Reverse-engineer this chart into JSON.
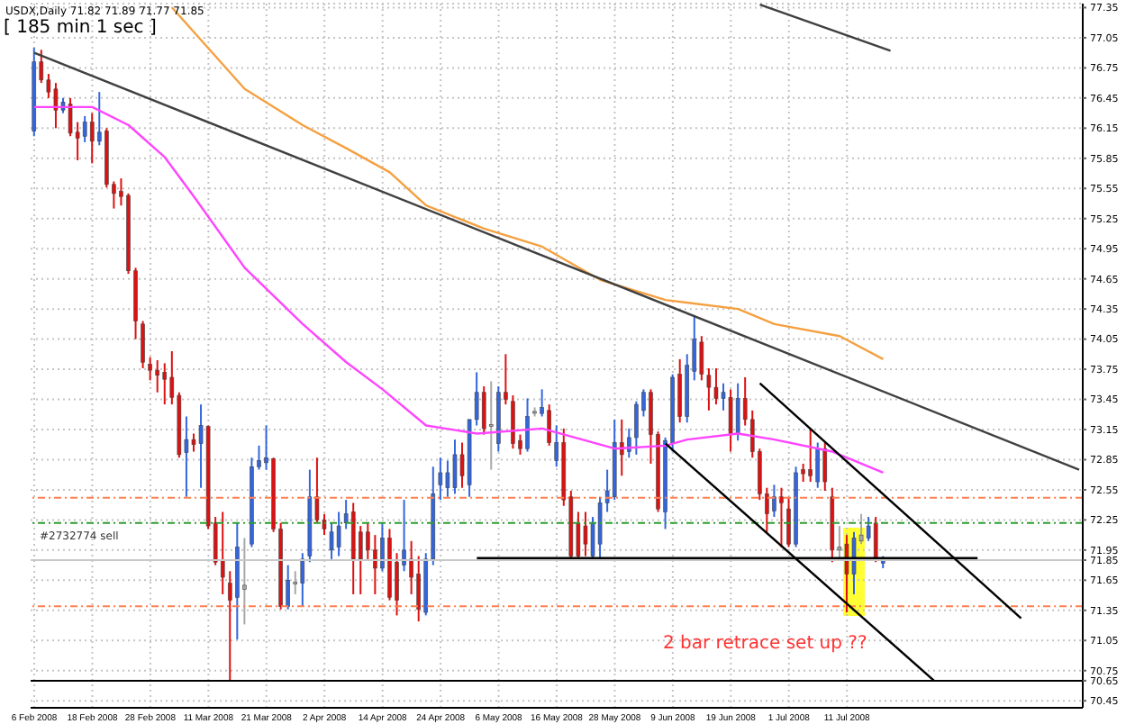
{
  "chart_data": {
    "type": "candlestick",
    "title": "USDX,Daily  71.82 71.89 71.77 71.85",
    "subtitle": "[ 185 min 1 sec ]",
    "categories": [
      "6 Feb 2008",
      null,
      null,
      null,
      null,
      null,
      null,
      null,
      "18 Feb 2008",
      null,
      null,
      null,
      null,
      null,
      null,
      null,
      "28 Feb 2008",
      null,
      null,
      null,
      null,
      null,
      null,
      null,
      "11 Mar 2008",
      null,
      null,
      null,
      null,
      null,
      null,
      null,
      "21 Mar 2008",
      null,
      null,
      null,
      null,
      null,
      null,
      null,
      "2 Apr 2008",
      null,
      null,
      null,
      null,
      null,
      null,
      null,
      "14 Apr 2008",
      null,
      null,
      null,
      null,
      null,
      null,
      null,
      "24 Apr 2008",
      null,
      null,
      null,
      null,
      null,
      null,
      null,
      "6 May 2008",
      null,
      null,
      null,
      null,
      null,
      null,
      null,
      "16 May 2008",
      null,
      null,
      null,
      null,
      null,
      null,
      null,
      "28 May 2008",
      null,
      null,
      null,
      null,
      null,
      null,
      null,
      "9 Jun 2008",
      null,
      null,
      null,
      null,
      null,
      null,
      null,
      "19 Jun 2008",
      null,
      null,
      null,
      null,
      null,
      null,
      null,
      "1 Jul 2008",
      null,
      null,
      null,
      null,
      null,
      null,
      null,
      "11 Jul 2008",
      null,
      null,
      null,
      null,
      null,
      null,
      null,
      null,
      null,
      null,
      null,
      null,
      null,
      null,
      null,
      null,
      null,
      null,
      null,
      null,
      null,
      null,
      null,
      null,
      null,
      null,
      null,
      null,
      null,
      null,
      null,
      null
    ],
    "ohlc": [
      [
        76.12,
        76.95,
        76.07,
        76.81
      ],
      [
        76.81,
        76.93,
        76.6,
        76.63
      ],
      [
        76.63,
        76.69,
        76.45,
        76.51
      ],
      [
        76.54,
        76.6,
        76.15,
        76.33
      ],
      [
        76.33,
        76.45,
        76.3,
        76.41
      ],
      [
        76.39,
        76.45,
        76.07,
        76.1
      ],
      [
        76.11,
        76.21,
        75.83,
        76.05
      ],
      [
        76.07,
        76.27,
        76.01,
        76.21
      ],
      [
        76.21,
        76.3,
        75.8,
        76.02
      ],
      [
        76.02,
        76.51,
        75.98,
        76.11
      ],
      [
        76.12,
        76.15,
        75.56,
        75.59
      ],
      [
        75.59,
        75.62,
        75.35,
        75.5
      ],
      [
        75.52,
        75.65,
        75.38,
        75.47
      ],
      [
        75.48,
        75.5,
        74.7,
        74.73
      ],
      [
        74.73,
        74.76,
        74.05,
        74.23
      ],
      [
        74.2,
        74.23,
        73.76,
        73.82
      ],
      [
        73.8,
        73.87,
        73.64,
        73.74
      ],
      [
        73.74,
        73.84,
        73.52,
        73.69
      ],
      [
        73.72,
        73.81,
        73.4,
        73.65
      ],
      [
        73.67,
        73.93,
        73.4,
        73.47
      ],
      [
        73.49,
        73.52,
        72.87,
        72.9
      ],
      [
        72.92,
        73.28,
        72.48,
        73.05
      ],
      [
        73.05,
        73.11,
        72.93,
        73.0
      ],
      [
        73.01,
        73.4,
        72.57,
        73.19
      ],
      [
        73.18,
        73.19,
        72.16,
        72.19
      ],
      [
        72.22,
        72.28,
        71.8,
        71.83
      ],
      [
        71.85,
        72.33,
        71.51,
        71.68
      ],
      [
        71.62,
        71.74,
        70.65,
        71.45
      ],
      [
        71.48,
        72.22,
        71.06,
        71.98
      ],
      [
        71.56,
        72.07,
        71.21,
        71.6
      ],
      [
        72.01,
        72.87,
        71.98,
        72.78
      ],
      [
        72.78,
        72.99,
        72.75,
        72.84
      ],
      [
        72.82,
        73.19,
        72.75,
        72.87
      ],
      [
        72.86,
        72.87,
        72.13,
        72.16
      ],
      [
        72.16,
        72.22,
        71.36,
        71.39
      ],
      [
        71.39,
        71.8,
        71.36,
        71.65
      ],
      [
        71.62,
        71.74,
        71.51,
        71.63
      ],
      [
        71.62,
        71.92,
        71.39,
        71.86
      ],
      [
        71.89,
        72.75,
        71.83,
        72.48
      ],
      [
        72.48,
        72.87,
        72.22,
        72.25
      ],
      [
        72.25,
        72.31,
        72.1,
        72.16
      ],
      [
        71.95,
        72.22,
        71.86,
        72.13
      ],
      [
        71.98,
        72.33,
        71.89,
        72.19
      ],
      [
        72.22,
        72.45,
        72.16,
        72.31
      ],
      [
        72.33,
        72.42,
        71.51,
        71.86
      ],
      [
        72.13,
        72.19,
        71.51,
        71.86
      ],
      [
        72.13,
        72.22,
        71.86,
        71.95
      ],
      [
        71.95,
        72.1,
        71.51,
        71.77
      ],
      [
        71.77,
        72.22,
        71.74,
        72.07
      ],
      [
        72.07,
        72.16,
        71.45,
        71.48
      ],
      [
        71.83,
        71.92,
        71.3,
        71.45
      ],
      [
        71.8,
        72.45,
        71.74,
        71.95
      ],
      [
        71.86,
        72.04,
        71.51,
        71.68
      ],
      [
        71.71,
        71.89,
        71.24,
        71.36
      ],
      [
        71.33,
        71.92,
        71.3,
        71.86
      ],
      [
        71.86,
        72.78,
        71.8,
        72.51
      ],
      [
        72.6,
        72.87,
        72.45,
        72.72
      ],
      [
        72.57,
        72.84,
        72.48,
        72.72
      ],
      [
        72.57,
        73.05,
        72.51,
        72.9
      ],
      [
        72.9,
        73.02,
        72.57,
        72.69
      ],
      [
        72.6,
        73.25,
        72.48,
        73.25
      ],
      [
        73.25,
        73.72,
        73.19,
        73.52
      ],
      [
        73.52,
        73.58,
        73.1,
        73.16
      ],
      [
        73.18,
        73.63,
        72.75,
        73.2
      ],
      [
        73.01,
        73.58,
        72.93,
        73.52
      ],
      [
        73.52,
        73.9,
        73.4,
        73.45
      ],
      [
        73.43,
        73.49,
        72.96,
        73.01
      ],
      [
        73.04,
        73.1,
        72.9,
        72.96
      ],
      [
        72.96,
        73.46,
        72.93,
        73.28
      ],
      [
        73.32,
        73.37,
        73.28,
        73.33
      ],
      [
        73.31,
        73.55,
        73.28,
        73.37
      ],
      [
        73.34,
        73.4,
        72.99,
        73.02
      ],
      [
        72.84,
        73.19,
        72.78,
        73.02
      ],
      [
        73.02,
        73.16,
        72.39,
        72.45
      ],
      [
        72.48,
        72.54,
        71.86,
        71.89
      ],
      [
        72.22,
        72.33,
        71.86,
        71.89
      ],
      [
        72.19,
        72.33,
        71.89,
        72.01
      ],
      [
        71.89,
        72.28,
        71.86,
        72.22
      ],
      [
        72.01,
        72.48,
        71.86,
        72.42
      ],
      [
        72.42,
        72.75,
        72.33,
        72.54
      ],
      [
        72.48,
        73.25,
        72.45,
        73.02
      ],
      [
        73.02,
        73.25,
        72.69,
        72.9
      ],
      [
        72.93,
        73.16,
        72.87,
        73.07
      ],
      [
        73.07,
        73.43,
        72.9,
        73.4
      ],
      [
        73.34,
        73.55,
        73.28,
        73.52
      ],
      [
        73.52,
        73.55,
        72.81,
        73.1
      ],
      [
        73.1,
        73.13,
        72.33,
        72.36
      ],
      [
        72.33,
        73.07,
        72.16,
        73.04
      ],
      [
        73.02,
        73.7,
        72.93,
        73.67
      ],
      [
        73.7,
        73.85,
        73.22,
        73.28
      ],
      [
        73.28,
        73.9,
        73.22,
        73.79
      ],
      [
        73.73,
        74.29,
        73.64,
        74.05
      ],
      [
        74.02,
        74.08,
        73.64,
        73.7
      ],
      [
        73.69,
        73.76,
        73.34,
        73.57
      ],
      [
        73.57,
        73.76,
        73.4,
        73.46
      ],
      [
        73.46,
        73.61,
        73.34,
        73.52
      ],
      [
        73.47,
        73.55,
        72.93,
        73.11
      ],
      [
        73.1,
        73.61,
        73.04,
        73.46
      ],
      [
        73.46,
        73.67,
        73.19,
        73.25
      ],
      [
        73.25,
        73.34,
        72.87,
        72.93
      ],
      [
        72.93,
        72.96,
        72.45,
        72.51
      ],
      [
        72.51,
        72.57,
        72.13,
        72.31
      ],
      [
        72.34,
        72.6,
        72.28,
        72.48
      ],
      [
        72.48,
        72.57,
        71.98,
        72.42
      ],
      [
        72.36,
        72.48,
        71.98,
        72.01
      ],
      [
        72.01,
        72.78,
        71.98,
        72.72
      ],
      [
        72.75,
        72.81,
        72.63,
        72.71
      ],
      [
        72.75,
        73.16,
        72.63,
        72.69
      ],
      [
        72.63,
        73.02,
        72.57,
        72.96
      ],
      [
        72.96,
        73.02,
        72.54,
        72.63
      ],
      [
        72.48,
        72.57,
        71.83,
        71.95
      ],
      [
        71.95,
        72.19,
        71.86,
        71.98
      ],
      [
        72.01,
        72.1,
        71.33,
        71.71
      ],
      [
        71.71,
        72.13,
        71.51,
        72.07
      ],
      [
        72.04,
        72.31,
        72.01,
        72.1
      ],
      [
        72.07,
        72.28,
        72.04,
        72.19
      ],
      [
        72.22,
        72.28,
        71.83,
        71.86
      ],
      [
        71.82,
        71.89,
        71.77,
        71.85
      ],
      null,
      null,
      null,
      null,
      null,
      null,
      null,
      null,
      null,
      null,
      null,
      null,
      null,
      null,
      null,
      null,
      null,
      null,
      null,
      null,
      null,
      null,
      null,
      null,
      null,
      null,
      null
    ],
    "colors": [
      "#3366dd",
      "#dd1111",
      "#dd1111",
      "#dd1111",
      "#3366dd",
      "#dd1111",
      "#dd1111",
      "#3366dd",
      "#dd1111",
      "#3366dd",
      "#dd1111",
      "#dd1111",
      "#dd1111",
      "#dd1111",
      "#dd1111",
      "#dd1111",
      "#dd1111",
      "#dd1111",
      "#dd1111",
      "#dd1111",
      "#dd1111",
      "#3366dd",
      "#dd1111",
      "#3366dd",
      "#dd1111",
      "#dd1111",
      "#dd1111",
      "#dd1111",
      "#3366dd",
      "#a8a8a8",
      "#3366dd",
      "#3366dd",
      "#3366dd",
      "#dd1111",
      "#dd1111",
      "#3366dd",
      "#a8a8a8",
      "#3366dd",
      "#3366dd",
      "#dd1111",
      "#dd1111",
      "#3366dd",
      "#3366dd",
      "#3366dd",
      "#dd1111",
      "#dd1111",
      "#dd1111",
      "#dd1111",
      "#3366dd",
      "#dd1111",
      "#dd1111",
      "#3366dd",
      "#dd1111",
      "#dd1111",
      "#3366dd",
      "#3366dd",
      "#3366dd",
      "#3366dd",
      "#3366dd",
      "#dd1111",
      "#3366dd",
      "#3366dd",
      "#dd1111",
      "#a8a8a8",
      "#3366dd",
      "#dd1111",
      "#dd1111",
      "#dd1111",
      "#3366dd",
      "#a8a8a8",
      "#3366dd",
      "#dd1111",
      "#3366dd",
      "#dd1111",
      "#dd1111",
      "#dd1111",
      "#dd1111",
      "#3366dd",
      "#3366dd",
      "#3366dd",
      "#3366dd",
      "#dd1111",
      "#3366dd",
      "#3366dd",
      "#3366dd",
      "#dd1111",
      "#dd1111",
      "#3366dd",
      "#3366dd",
      "#dd1111",
      "#3366dd",
      "#3366dd",
      "#dd1111",
      "#dd1111",
      "#dd1111",
      "#3366dd",
      "#dd1111",
      "#3366dd",
      "#dd1111",
      "#dd1111",
      "#dd1111",
      "#dd1111",
      "#3366dd",
      "#dd1111",
      "#dd1111",
      "#3366dd",
      "#dd1111",
      "#dd1111",
      "#3366dd",
      "#dd1111",
      "#dd1111",
      "#a8a8a8",
      "#dd1111",
      "#3366dd",
      "#a8a8a8",
      "#3366dd",
      "#dd1111",
      "#3366dd",
      null,
      null,
      null,
      null,
      null,
      null,
      null,
      null,
      null,
      null,
      null,
      null,
      null,
      null,
      null,
      null,
      null,
      null,
      null,
      null,
      null,
      null,
      null,
      null,
      null,
      null,
      null
    ],
    "series": [
      {
        "type": "line",
        "color": "#ff44ff",
        "values": [
          76.36,
          null,
          null,
          null,
          null,
          null,
          null,
          null,
          76.36,
          null,
          null,
          null,
          null,
          76.18,
          null,
          null,
          null,
          null,
          75.86,
          null,
          null,
          null,
          75.47,
          null,
          null,
          null,
          null,
          null,
          null,
          74.76,
          null,
          null,
          null,
          null,
          null,
          null,
          null,
          74.2,
          null,
          null,
          null,
          null,
          null,
          73.82,
          null,
          null,
          null,
          null,
          73.55,
          null,
          null,
          null,
          null,
          null,
          73.19,
          null,
          null,
          null,
          null,
          null,
          null,
          73.11,
          null,
          null,
          null,
          null,
          null,
          null,
          null,
          null,
          73.16,
          null,
          null,
          null,
          null,
          null,
          null,
          null,
          null,
          null,
          72.96,
          null,
          null,
          null,
          null,
          null,
          null,
          72.99,
          null,
          null,
          73.05,
          null,
          null,
          null,
          null,
          null,
          null,
          73.11,
          null,
          null,
          null,
          null,
          73.05,
          null,
          null,
          null,
          null,
          null,
          null,
          null,
          72.93,
          null,
          null,
          null,
          null,
          null,
          null,
          72.72,
          null,
          null,
          null,
          null,
          null,
          null,
          null,
          null,
          null,
          null,
          null,
          null,
          null,
          null,
          null,
          null,
          null,
          null,
          null,
          null,
          null,
          null,
          null,
          null,
          null,
          null,
          null
        ]
      },
      {
        "type": "line",
        "color": "#f5a040",
        "values": [
          null,
          null,
          null,
          null,
          null,
          null,
          null,
          null,
          null,
          null,
          null,
          null,
          null,
          null,
          null,
          null,
          null,
          null,
          null,
          77.35,
          null,
          null,
          null,
          null,
          null,
          null,
          null,
          null,
          null,
          76.54,
          null,
          null,
          null,
          null,
          null,
          null,
          null,
          76.18,
          null,
          null,
          null,
          null,
          null,
          75.95,
          null,
          null,
          null,
          null,
          null,
          75.71,
          null,
          null,
          null,
          null,
          75.38,
          null,
          null,
          null,
          null,
          null,
          null,
          null,
          75.15,
          null,
          null,
          null,
          null,
          null,
          null,
          null,
          74.97,
          null,
          null,
          null,
          null,
          null,
          null,
          null,
          74.64,
          null,
          null,
          null,
          null,
          null,
          null,
          null,
          null,
          74.44,
          null,
          null,
          null,
          null,
          null,
          null,
          null,
          null,
          null,
          74.35,
          null,
          null,
          null,
          null,
          74.2,
          null,
          null,
          null,
          null,
          null,
          null,
          null,
          null,
          74.08,
          null,
          null,
          null,
          null,
          null,
          73.85,
          null,
          null,
          null,
          null,
          null,
          null,
          null,
          null,
          null,
          null,
          null,
          null,
          null,
          null,
          null,
          null,
          null,
          null,
          null,
          null,
          null,
          null,
          null,
          null,
          null,
          null,
          null
        ]
      },
      {
        "type": "line",
        "color": "#404040",
        "values": [
          76.9,
          null,
          null,
          null,
          null,
          null,
          null,
          null,
          null,
          null,
          null,
          null,
          null,
          null,
          null,
          null,
          null,
          null,
          null,
          null,
          null,
          null,
          null,
          null,
          null,
          null,
          null,
          null,
          null,
          null,
          null,
          null,
          null,
          null,
          null,
          null,
          null,
          null,
          null,
          null,
          null,
          null,
          null,
          null,
          null,
          null,
          null,
          null,
          null,
          null,
          null,
          null,
          null,
          null,
          null,
          null,
          null,
          null,
          null,
          null,
          null,
          null,
          null,
          null,
          null,
          null,
          null,
          null,
          null,
          null,
          null,
          null,
          null,
          null,
          null,
          null,
          null,
          null,
          null,
          null,
          null,
          null,
          null,
          null,
          null,
          null,
          null,
          null,
          null,
          null,
          null,
          null,
          null,
          null,
          null,
          null,
          null,
          null,
          null,
          null,
          null,
          null,
          null,
          null,
          null,
          null,
          null,
          null,
          null,
          null,
          null,
          null,
          null,
          null,
          null,
          null,
          null,
          null,
          null,
          null,
          null,
          null,
          null,
          null,
          null,
          null,
          null,
          null,
          null,
          null,
          null,
          null,
          null,
          null,
          null,
          null,
          null,
          null,
          null,
          null,
          null,
          null,
          null,
          null,
          72.75
        ]
      },
      {
        "type": "line",
        "color": "#404040",
        "values": [
          null,
          null,
          null,
          null,
          null,
          null,
          null,
          null,
          null,
          null,
          null,
          null,
          null,
          null,
          null,
          null,
          null,
          null,
          null,
          null,
          null,
          null,
          null,
          null,
          null,
          null,
          null,
          null,
          null,
          null,
          null,
          null,
          null,
          null,
          null,
          null,
          null,
          null,
          null,
          null,
          null,
          null,
          null,
          null,
          null,
          null,
          null,
          null,
          null,
          null,
          null,
          null,
          null,
          null,
          null,
          null,
          null,
          null,
          null,
          null,
          null,
          null,
          null,
          null,
          null,
          null,
          null,
          null,
          null,
          null,
          null,
          null,
          null,
          null,
          null,
          null,
          null,
          null,
          null,
          null,
          null,
          null,
          null,
          null,
          null,
          null,
          null,
          null,
          null,
          null,
          null,
          null,
          null,
          null,
          null,
          null,
          null,
          null,
          null,
          null,
          77.38,
          null,
          null,
          null,
          null,
          null,
          null,
          null,
          null,
          null,
          null,
          null,
          null,
          null,
          null,
          null,
          null,
          null,
          76.92,
          null,
          null,
          null,
          null,
          null,
          null,
          null,
          null,
          null,
          null,
          null,
          null,
          null,
          null,
          null,
          null,
          null,
          null,
          null,
          null,
          null,
          null,
          null,
          null,
          null,
          null
        ]
      },
      {
        "type": "line",
        "color": "#000000",
        "values": [
          null,
          null,
          null,
          null,
          null,
          null,
          null,
          null,
          null,
          null,
          null,
          null,
          null,
          null,
          null,
          null,
          null,
          null,
          null,
          null,
          null,
          null,
          null,
          null,
          null,
          null,
          null,
          null,
          null,
          null,
          null,
          null,
          null,
          null,
          null,
          null,
          null,
          null,
          null,
          null,
          null,
          null,
          null,
          null,
          null,
          null,
          null,
          null,
          null,
          null,
          null,
          null,
          null,
          null,
          null,
          null,
          null,
          null,
          null,
          null,
          null,
          null,
          null,
          null,
          null,
          null,
          null,
          null,
          null,
          null,
          null,
          null,
          null,
          null,
          null,
          null,
          null,
          null,
          null,
          null,
          null,
          null,
          null,
          null,
          null,
          null,
          null,
          null,
          null,
          null,
          null,
          null,
          null,
          null,
          null,
          null,
          null,
          null,
          null,
          null,
          73.61,
          null,
          null,
          null,
          null,
          null,
          null,
          null,
          null,
          null,
          null,
          null,
          null,
          null,
          null,
          null,
          null,
          null,
          null,
          null,
          null,
          null,
          null,
          null,
          null,
          null,
          null,
          null,
          null,
          null,
          null,
          null,
          null,
          null,
          null,
          null,
          71.27,
          null,
          null,
          null,
          null,
          null,
          null,
          null,
          null
        ]
      },
      {
        "type": "line",
        "color": "#000000",
        "values": [
          null,
          null,
          null,
          null,
          null,
          null,
          null,
          null,
          null,
          null,
          null,
          null,
          null,
          null,
          null,
          null,
          null,
          null,
          null,
          null,
          null,
          null,
          null,
          null,
          null,
          null,
          null,
          null,
          null,
          null,
          null,
          null,
          null,
          null,
          null,
          null,
          null,
          null,
          null,
          null,
          null,
          null,
          null,
          null,
          null,
          null,
          null,
          null,
          null,
          null,
          null,
          null,
          null,
          null,
          null,
          null,
          null,
          null,
          null,
          null,
          null,
          null,
          null,
          null,
          null,
          null,
          null,
          null,
          null,
          null,
          null,
          null,
          null,
          null,
          null,
          null,
          null,
          null,
          null,
          null,
          null,
          null,
          null,
          null,
          null,
          null,
          null,
          73.01,
          null,
          null,
          null,
          null,
          null,
          null,
          null,
          null,
          null,
          null,
          null,
          null,
          null,
          null,
          null,
          null,
          null,
          null,
          null,
          null,
          null,
          null,
          null,
          null,
          null,
          null,
          null,
          null,
          null,
          null,
          null,
          null,
          null,
          null,
          null,
          null,
          70.65,
          null,
          null,
          null,
          null,
          null,
          null,
          null,
          null,
          null,
          null,
          null,
          null,
          null,
          null,
          null,
          null,
          null,
          null,
          null,
          null
        ]
      },
      {
        "type": "line",
        "color": "#000000",
        "values": [
          null,
          null,
          null,
          null,
          null,
          null,
          null,
          null,
          null,
          null,
          null,
          null,
          null,
          null,
          null,
          null,
          null,
          null,
          null,
          null,
          null,
          null,
          null,
          null,
          null,
          null,
          null,
          null,
          null,
          null,
          null,
          null,
          null,
          null,
          null,
          null,
          null,
          null,
          null,
          null,
          null,
          null,
          null,
          null,
          null,
          null,
          null,
          null,
          null,
          null,
          null,
          null,
          null,
          null,
          null,
          null,
          null,
          null,
          null,
          null,
          null,
          71.87,
          null,
          null,
          null,
          null,
          null,
          null,
          null,
          null,
          null,
          null,
          null,
          null,
          null,
          null,
          null,
          null,
          null,
          null,
          null,
          null,
          null,
          null,
          null,
          null,
          null,
          null,
          null,
          null,
          null,
          null,
          null,
          null,
          null,
          null,
          null,
          null,
          null,
          null,
          null,
          null,
          null,
          null,
          null,
          null,
          null,
          null,
          null,
          null,
          null,
          null,
          null,
          null,
          null,
          null,
          null,
          null,
          null,
          null,
          null,
          null,
          null,
          null,
          null,
          null,
          null,
          null,
          null,
          null,
          71.87,
          null,
          null,
          null,
          null,
          null,
          null,
          null,
          null,
          null,
          null,
          null,
          null,
          null,
          null
        ]
      }
    ],
    "ylim": [
      70.38,
      77.39
    ],
    "yticks": [
      77.35,
      77.05,
      76.75,
      76.45,
      76.15,
      75.85,
      75.55,
      75.25,
      74.95,
      74.65,
      74.35,
      74.05,
      73.75,
      73.45,
      73.15,
      72.85,
      72.55,
      72.25,
      71.95,
      71.85,
      71.65,
      71.35,
      71.05,
      70.75,
      70.65,
      70.45
    ],
    "grid": true,
    "marker": "none",
    "ref_lines": [
      {
        "axis": "y",
        "value": 72.47,
        "color": "#ff7f50",
        "line_style": "dashed"
      },
      {
        "axis": "y",
        "value": 72.22,
        "label": "#2732774 sell",
        "color": "#2e9e2e",
        "line_style": "dashed"
      },
      {
        "axis": "y",
        "value": 71.39,
        "color": "#ff7f50",
        "line_style": "dashed"
      },
      {
        "axis": "y",
        "value": 71.85,
        "color": "#c8c8c8"
      },
      {
        "axis": "y",
        "value": 70.65,
        "color": "#000000"
      }
    ],
    "annotations": [
      "2 bar retrace set up ??"
    ]
  }
}
